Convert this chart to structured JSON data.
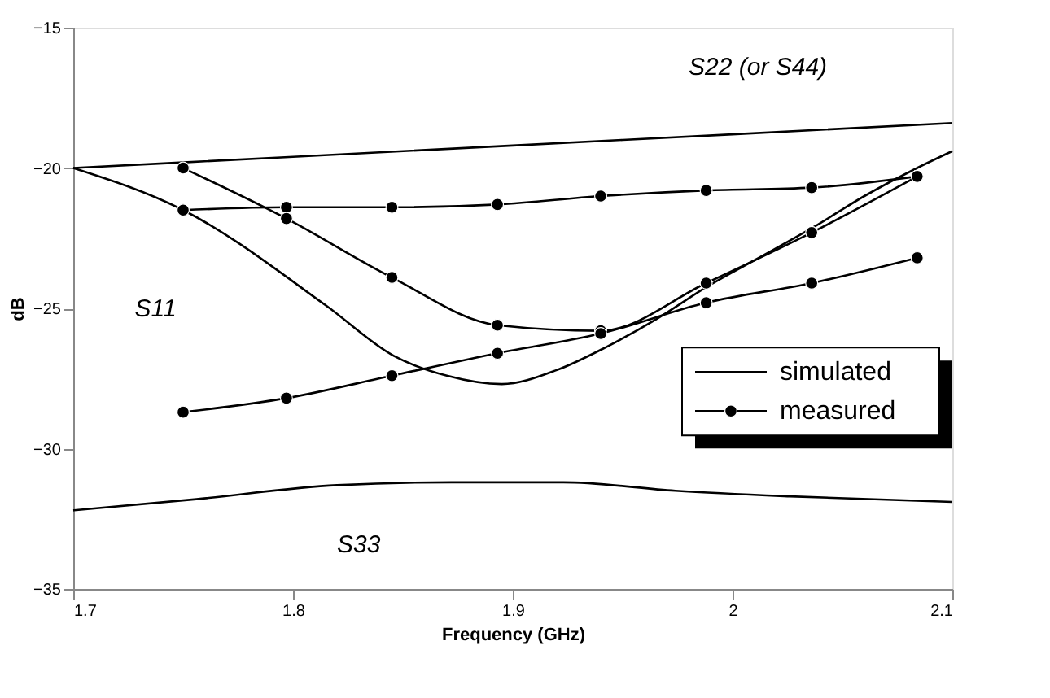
{
  "chart_data": {
    "type": "line",
    "xlabel": "Frequency (GHz)",
    "ylabel": "dB",
    "xlim": [
      1.7,
      2.1
    ],
    "xticks": [
      1.7,
      1.8,
      1.9,
      2,
      2.1
    ],
    "ylim": [
      -35,
      -15
    ],
    "yticks": [
      -35,
      -30,
      -25,
      -20,
      -15
    ],
    "grid": false,
    "legend": "right",
    "line_style": "solid",
    "series": [
      {
        "name": "simulated",
        "color": "#000000",
        "marker": "none",
        "x": [
          1.7,
          1.8,
          1.9,
          2.0,
          2.1
        ],
        "values": [
          -20.0,
          -19.6,
          -19.2,
          -18.8,
          -18.4
        ]
      },
      {
        "color": "#000000",
        "marker": "none",
        "x": [
          1.7,
          1.75,
          1.815,
          1.846,
          1.87,
          1.895,
          1.92,
          1.942,
          1.965,
          1.989,
          2.012,
          2.037,
          2.06,
          2.084,
          2.1
        ],
        "values": [
          -20.0,
          -21.5,
          -24.9,
          -26.7,
          -27.4,
          -27.7,
          -27.2,
          -26.4,
          -25.4,
          -24.2,
          -23.2,
          -22.1,
          -21.0,
          -20.0,
          -19.4
        ]
      },
      {
        "color": "#000000",
        "marker": "none",
        "x": [
          1.7,
          1.756,
          1.82,
          1.872,
          1.923,
          1.974,
          2.026,
          2.1
        ],
        "values": [
          -32.2,
          -31.8,
          -31.3,
          -31.2,
          -31.2,
          -31.5,
          -31.7,
          -31.9
        ]
      },
      {
        "name": "measured",
        "color": "#000000",
        "marker": "circle",
        "x": [
          1.75,
          1.797,
          1.845,
          1.893,
          1.94,
          1.988,
          2.036,
          2.084
        ],
        "values": [
          -21.5,
          -21.4,
          -21.4,
          -21.3,
          -21.0,
          -20.8,
          -20.7,
          -20.3
        ]
      },
      {
        "color": "#000000",
        "marker": "circle",
        "x": [
          1.75,
          1.797,
          1.845,
          1.893,
          1.94,
          1.988,
          2.036,
          2.084
        ],
        "values": [
          -20.0,
          -21.8,
          -23.9,
          -25.6,
          -25.8,
          -24.1,
          -22.3,
          -20.3
        ]
      },
      {
        "color": "#000000",
        "marker": "circle",
        "x": [
          1.75,
          1.797,
          1.845,
          1.893,
          1.94,
          1.988,
          2.036,
          2.084
        ],
        "values": [
          -28.7,
          -28.2,
          -27.4,
          -26.6,
          -25.9,
          -24.8,
          -24.1,
          -23.2
        ]
      }
    ],
    "annotations": [
      "S22 (or S44)",
      "S11",
      "S33"
    ]
  }
}
